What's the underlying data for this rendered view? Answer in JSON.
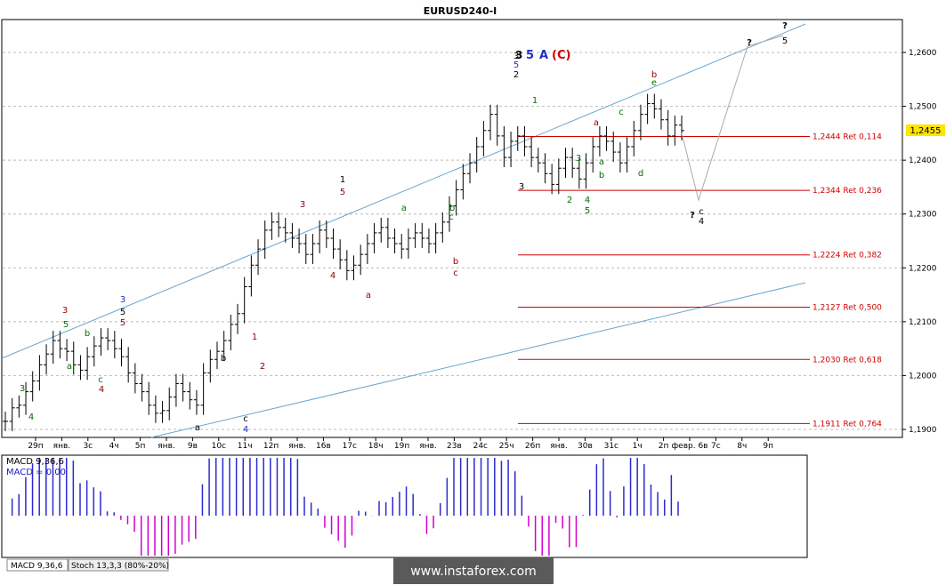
{
  "title": "EURUSD240-I",
  "price": {
    "current": "1,2455",
    "ylim": [
      1.1885,
      1.2665
    ],
    "yticks": [
      "1,2600",
      "1,2500",
      "1,2400",
      "1,2300",
      "1,2200",
      "1,2100",
      "1,2000",
      "1,1900"
    ]
  },
  "dates": [
    "29п",
    "янв.",
    "3с",
    "4ч",
    "5п",
    "янв.",
    "9в",
    "10с",
    "11ч",
    "12п",
    "янв.",
    "16в",
    "17с",
    "18ч",
    "19п",
    "янв.",
    "23в",
    "24с",
    "25ч",
    "26п",
    "янв.",
    "30в",
    "31с",
    "1ч",
    "2п",
    "февр. 6в",
    "7с",
    "8ч",
    "9п"
  ],
  "fib_levels": [
    {
      "value": 1.2444,
      "label": "1,2444 Ret 0,114"
    },
    {
      "value": 1.2344,
      "label": "1,2344 Ret 0,236"
    },
    {
      "value": 1.2224,
      "label": "1,2224 Ret 0,382"
    },
    {
      "value": 1.2127,
      "label": "1,2127 Ret 0,500"
    },
    {
      "value": 1.203,
      "label": "1,2030 Ret 0,618"
    },
    {
      "value": 1.1911,
      "label": "1,1911 Ret 0,764"
    }
  ],
  "wave_header": {
    "w1": "5",
    "w2": "A",
    "w3": "(C)"
  },
  "macd": {
    "name": "MACD 9,36,6",
    "value_label": "MACD = 0,00"
  },
  "tabs": [
    "MACD 9,36,6",
    "Stoch 13,3,3 (80%-20%)"
  ],
  "watermark": "www.instaforex.com",
  "colors": {
    "bull": "#000000",
    "fib": "#d00000",
    "channel": "#6aa6d0",
    "macd_pos": "#2a2ad0",
    "macd_neg": "#d000d0",
    "projection": "#aaaaaa"
  },
  "wave_labels": [
    {
      "t": "3",
      "c": "green"
    },
    {
      "t": "4",
      "c": "green"
    },
    {
      "t": "3",
      "c": "darkred"
    },
    {
      "t": "5",
      "c": "green"
    },
    {
      "t": "a",
      "c": "green"
    },
    {
      "t": "b",
      "c": "green"
    },
    {
      "t": "c",
      "c": "green"
    },
    {
      "t": "4",
      "c": "darkred"
    },
    {
      "t": "3",
      "c": "blue"
    },
    {
      "t": "5",
      "c": "black"
    },
    {
      "t": "5",
      "c": "darkred"
    },
    {
      "t": "a",
      "c": "black"
    },
    {
      "t": "b",
      "c": "black"
    },
    {
      "t": "c",
      "c": "black"
    },
    {
      "t": "4",
      "c": "blue"
    },
    {
      "t": "1",
      "c": "darkred"
    },
    {
      "t": "2",
      "c": "darkred"
    },
    {
      "t": "3",
      "c": "darkred"
    },
    {
      "t": "4",
      "c": "darkred"
    },
    {
      "t": "a",
      "c": "darkred"
    },
    {
      "t": "1",
      "c": "black"
    },
    {
      "t": "5",
      "c": "darkred"
    },
    {
      "t": "a",
      "c": "green"
    },
    {
      "t": "b",
      "c": "green"
    },
    {
      "t": "b",
      "c": "darkred"
    },
    {
      "t": "c",
      "c": "green"
    },
    {
      "t": "c",
      "c": "darkred"
    },
    {
      "t": "2",
      "c": "black"
    },
    {
      "t": "3",
      "c": "black"
    },
    {
      "t": "5",
      "c": "blue"
    },
    {
      "t": "3",
      "c": "black"
    },
    {
      "t": "1",
      "c": "green"
    },
    {
      "t": "2",
      "c": "green"
    },
    {
      "t": "3",
      "c": "green"
    },
    {
      "t": "4",
      "c": "green"
    },
    {
      "t": "5",
      "c": "green"
    },
    {
      "t": "a",
      "c": "darkred"
    },
    {
      "t": "a",
      "c": "green"
    },
    {
      "t": "b",
      "c": "green"
    },
    {
      "t": "c",
      "c": "green"
    },
    {
      "t": "d",
      "c": "green"
    },
    {
      "t": "e",
      "c": "green"
    },
    {
      "t": "b",
      "c": "darkred"
    },
    {
      "t": "?",
      "c": "black"
    },
    {
      "t": "c",
      "c": "black"
    },
    {
      "t": "4",
      "c": "black"
    },
    {
      "t": "?",
      "c": "black"
    },
    {
      "t": "?",
      "c": "black"
    },
    {
      "t": "5",
      "c": "black"
    }
  ]
}
